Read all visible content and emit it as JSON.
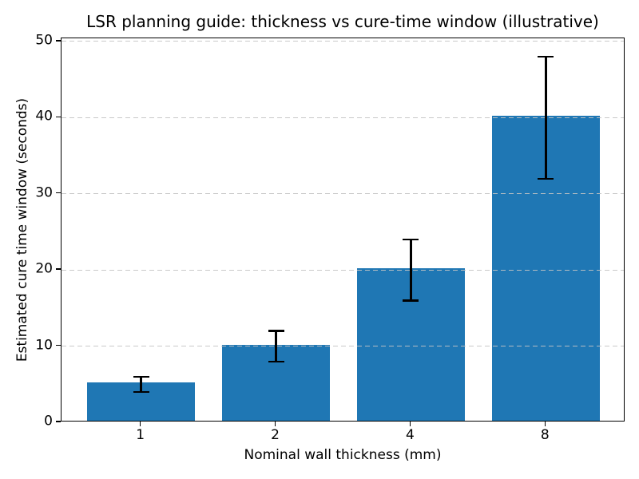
{
  "chart_data": {
    "type": "bar",
    "title": "LSR planning guide: thickness vs cure-time window (illustrative)",
    "xlabel": "Nominal wall thickness (mm)",
    "ylabel": "Estimated cure time window (seconds)",
    "categories": [
      "1",
      "2",
      "4",
      "8"
    ],
    "values": [
      5,
      10,
      20,
      40
    ],
    "errors": [
      1,
      2,
      4,
      8
    ],
    "error_ranges": [
      [
        4,
        6
      ],
      [
        8,
        12
      ],
      [
        16,
        24
      ],
      [
        32,
        48
      ]
    ],
    "yticks": [
      0,
      10,
      20,
      30,
      40,
      50
    ],
    "ylim": [
      0,
      50.4
    ],
    "bar_color": "#1f77b4",
    "errorbar_color": "#000000",
    "grid": {
      "axis": "y",
      "style": "dashed",
      "color": "#c3c3c3",
      "position": "above-bars"
    },
    "legend": "none",
    "background": "#ffffff"
  }
}
